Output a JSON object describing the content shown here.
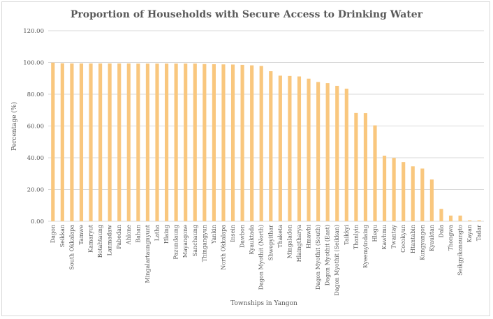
{
  "chart_data": {
    "type": "bar",
    "title": "Proportion of Households with Secure Access to Drinking Water",
    "xlabel": "Townships in Yangon",
    "ylabel": "Percentage (%)",
    "ylim": [
      0,
      120
    ],
    "yticks": [
      "0.00",
      "20.00",
      "40.00",
      "60.00",
      "80.00",
      "100.00",
      "120.00"
    ],
    "grid": true,
    "bar_color": "#f9c77e",
    "categories": [
      "Dagon",
      "Seikkan",
      "South Okkalapa",
      "Tamwe",
      "Kamaryut",
      "Botahtaung",
      "Lanmadaw",
      "Pabedan",
      "Ahlone",
      "Bahan",
      "Mingalartaungnyunt",
      "Latha",
      "Hlaing",
      "Pazundaung",
      "Mayangone",
      "Sanchaung",
      "Thingangyun",
      "Yankin",
      "North Okkalapa",
      "Insein",
      "Dawbon",
      "Kyauktada",
      "Dagon Myothit (North)",
      "Shwepyithar",
      "Thaketa",
      "Mingaladon",
      "Hlaingtharya",
      "Hmawbi",
      "Dagon Myothit (South)",
      "Dagon Myothit (East)",
      "Dagon Myothit (Seikkan)",
      "Taikkyi",
      "Thanlyin",
      "Kyeemyindaing",
      "Hlegu",
      "Kawhmu",
      "Twantay",
      "Cocokyun",
      "Htantabin",
      "Kungyangon",
      "Kyauktan",
      "Dala",
      "Thongwa",
      "Seikgyikanaungto",
      "Kayan",
      "Tadar"
    ],
    "values": [
      99.9,
      99.5,
      99.4,
      99.4,
      99.4,
      99.4,
      99.4,
      99.4,
      99.4,
      99.3,
      99.3,
      99.3,
      99.3,
      99.3,
      99.3,
      99.3,
      99.0,
      98.9,
      98.8,
      98.7,
      98.5,
      98.2,
      97.8,
      94.5,
      91.7,
      91.5,
      91.2,
      89.8,
      87.7,
      87.0,
      85.3,
      83.5,
      68.2,
      68.1,
      60.4,
      41.3,
      39.9,
      37.3,
      34.6,
      33.2,
      26.3,
      7.8,
      3.6,
      3.6,
      0.6,
      0.6
    ]
  }
}
